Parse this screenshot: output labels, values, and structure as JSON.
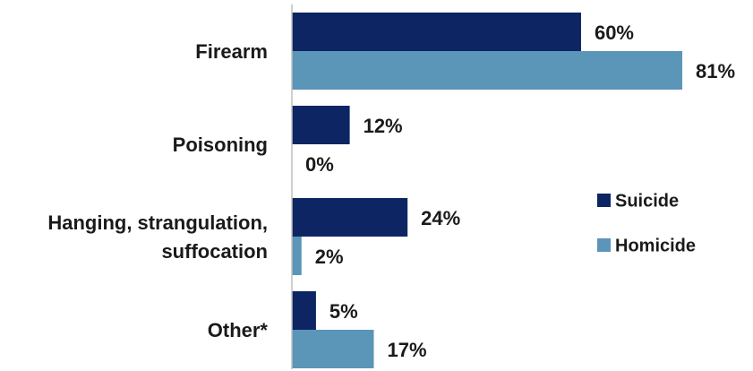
{
  "chart_data": {
    "type": "bar",
    "orientation": "horizontal",
    "categories": [
      "Firearm",
      "Poisoning",
      "Hanging, strangulation, suffocation",
      "Other*"
    ],
    "category_lines": [
      [
        "Firearm"
      ],
      [
        "Poisoning"
      ],
      [
        "Hanging, strangulation,",
        "suffocation"
      ],
      [
        "Other*"
      ]
    ],
    "series": [
      {
        "name": "Suicide",
        "values": [
          60,
          12,
          24,
          5
        ],
        "labels": [
          "60%",
          "12%",
          "24%",
          "5%"
        ],
        "color": "#0d2562"
      },
      {
        "name": "Homicide",
        "values": [
          81,
          0,
          2,
          17
        ],
        "labels": [
          "81%",
          "0%",
          "2%",
          "17%"
        ],
        "color": "#5b95b8"
      }
    ],
    "unit": "%",
    "xlim": [
      0,
      81
    ],
    "axis_line_color": "#bfbfbf",
    "grid": false,
    "legend_position": "right"
  }
}
